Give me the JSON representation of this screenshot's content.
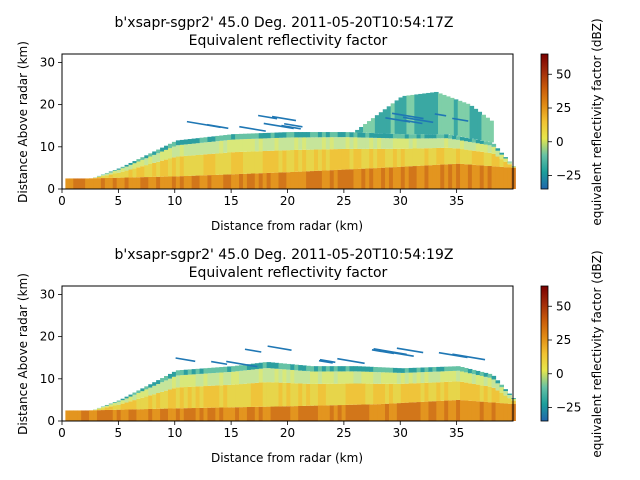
{
  "figure": {
    "background": "#ffffff"
  },
  "colorbar_colors": [
    "#2166ac",
    "#1b9e9b",
    "#66c2a5",
    "#e6e64c",
    "#f1c232",
    "#e08a14",
    "#c85a0a",
    "#a02a0a",
    "#7a0000"
  ],
  "chart_data": [
    {
      "type": "heatmap",
      "title": "b'xsapr-sgpr2' 45.0 Deg. 2011-05-20T10:54:17Z",
      "subtitle": "Equivalent reflectivity factor",
      "xlabel": "Distance from radar (km)",
      "ylabel": "Distance Above radar  (km)",
      "xlim": [
        0,
        40
      ],
      "ylim": [
        0,
        32
      ],
      "xticks": [
        0,
        5,
        10,
        15,
        20,
        25,
        30,
        35
      ],
      "yticks": [
        0,
        10,
        20,
        30
      ],
      "colorbar": {
        "label": "equivalent reflectivity factor (dBZ)",
        "range": [
          -35,
          65
        ],
        "ticks": [
          -25,
          0,
          25,
          50
        ]
      },
      "echo": {
        "echo_top_km": [
          [
            0,
            0
          ],
          [
            5,
            5
          ],
          [
            10,
            11.5
          ],
          [
            15,
            13
          ],
          [
            20,
            13.5
          ],
          [
            25,
            13.5
          ],
          [
            30,
            13
          ],
          [
            34,
            13
          ],
          [
            38,
            11
          ],
          [
            40,
            5
          ]
        ],
        "anvil_km": [
          [
            26,
            14
          ],
          [
            30,
            22
          ],
          [
            33,
            23
          ],
          [
            36,
            20
          ],
          [
            38,
            16
          ]
        ],
        "strong_core_km": [
          [
            2,
            2.5
          ],
          [
            10,
            3
          ],
          [
            20,
            4
          ],
          [
            28,
            5
          ],
          [
            35,
            6
          ],
          [
            40,
            5
          ]
        ]
      }
    },
    {
      "type": "heatmap",
      "title": "b'xsapr-sgpr2' 45.0 Deg. 2011-05-20T10:54:19Z",
      "subtitle": "Equivalent reflectivity factor",
      "xlabel": "Distance from radar (km)",
      "ylabel": "Distance Above radar  (km)",
      "xlim": [
        0,
        40
      ],
      "ylim": [
        0,
        32
      ],
      "xticks": [
        0,
        5,
        10,
        15,
        20,
        25,
        30,
        35
      ],
      "yticks": [
        0,
        10,
        20,
        30
      ],
      "colorbar": {
        "label": "equivalent reflectivity factor (dBZ)",
        "range": [
          -35,
          65
        ],
        "ticks": [
          -25,
          0,
          25,
          50
        ]
      },
      "echo": {
        "echo_top_km": [
          [
            0,
            0
          ],
          [
            5,
            5
          ],
          [
            10,
            12
          ],
          [
            15,
            13
          ],
          [
            18,
            14
          ],
          [
            22,
            13
          ],
          [
            26,
            13
          ],
          [
            30,
            12.5
          ],
          [
            35,
            13
          ],
          [
            38,
            11
          ],
          [
            40,
            5
          ]
        ],
        "anvil_km": [],
        "strong_core_km": [
          [
            2,
            2.5
          ],
          [
            10,
            3
          ],
          [
            20,
            3.5
          ],
          [
            28,
            4
          ],
          [
            35,
            5
          ],
          [
            40,
            4
          ]
        ]
      }
    }
  ]
}
